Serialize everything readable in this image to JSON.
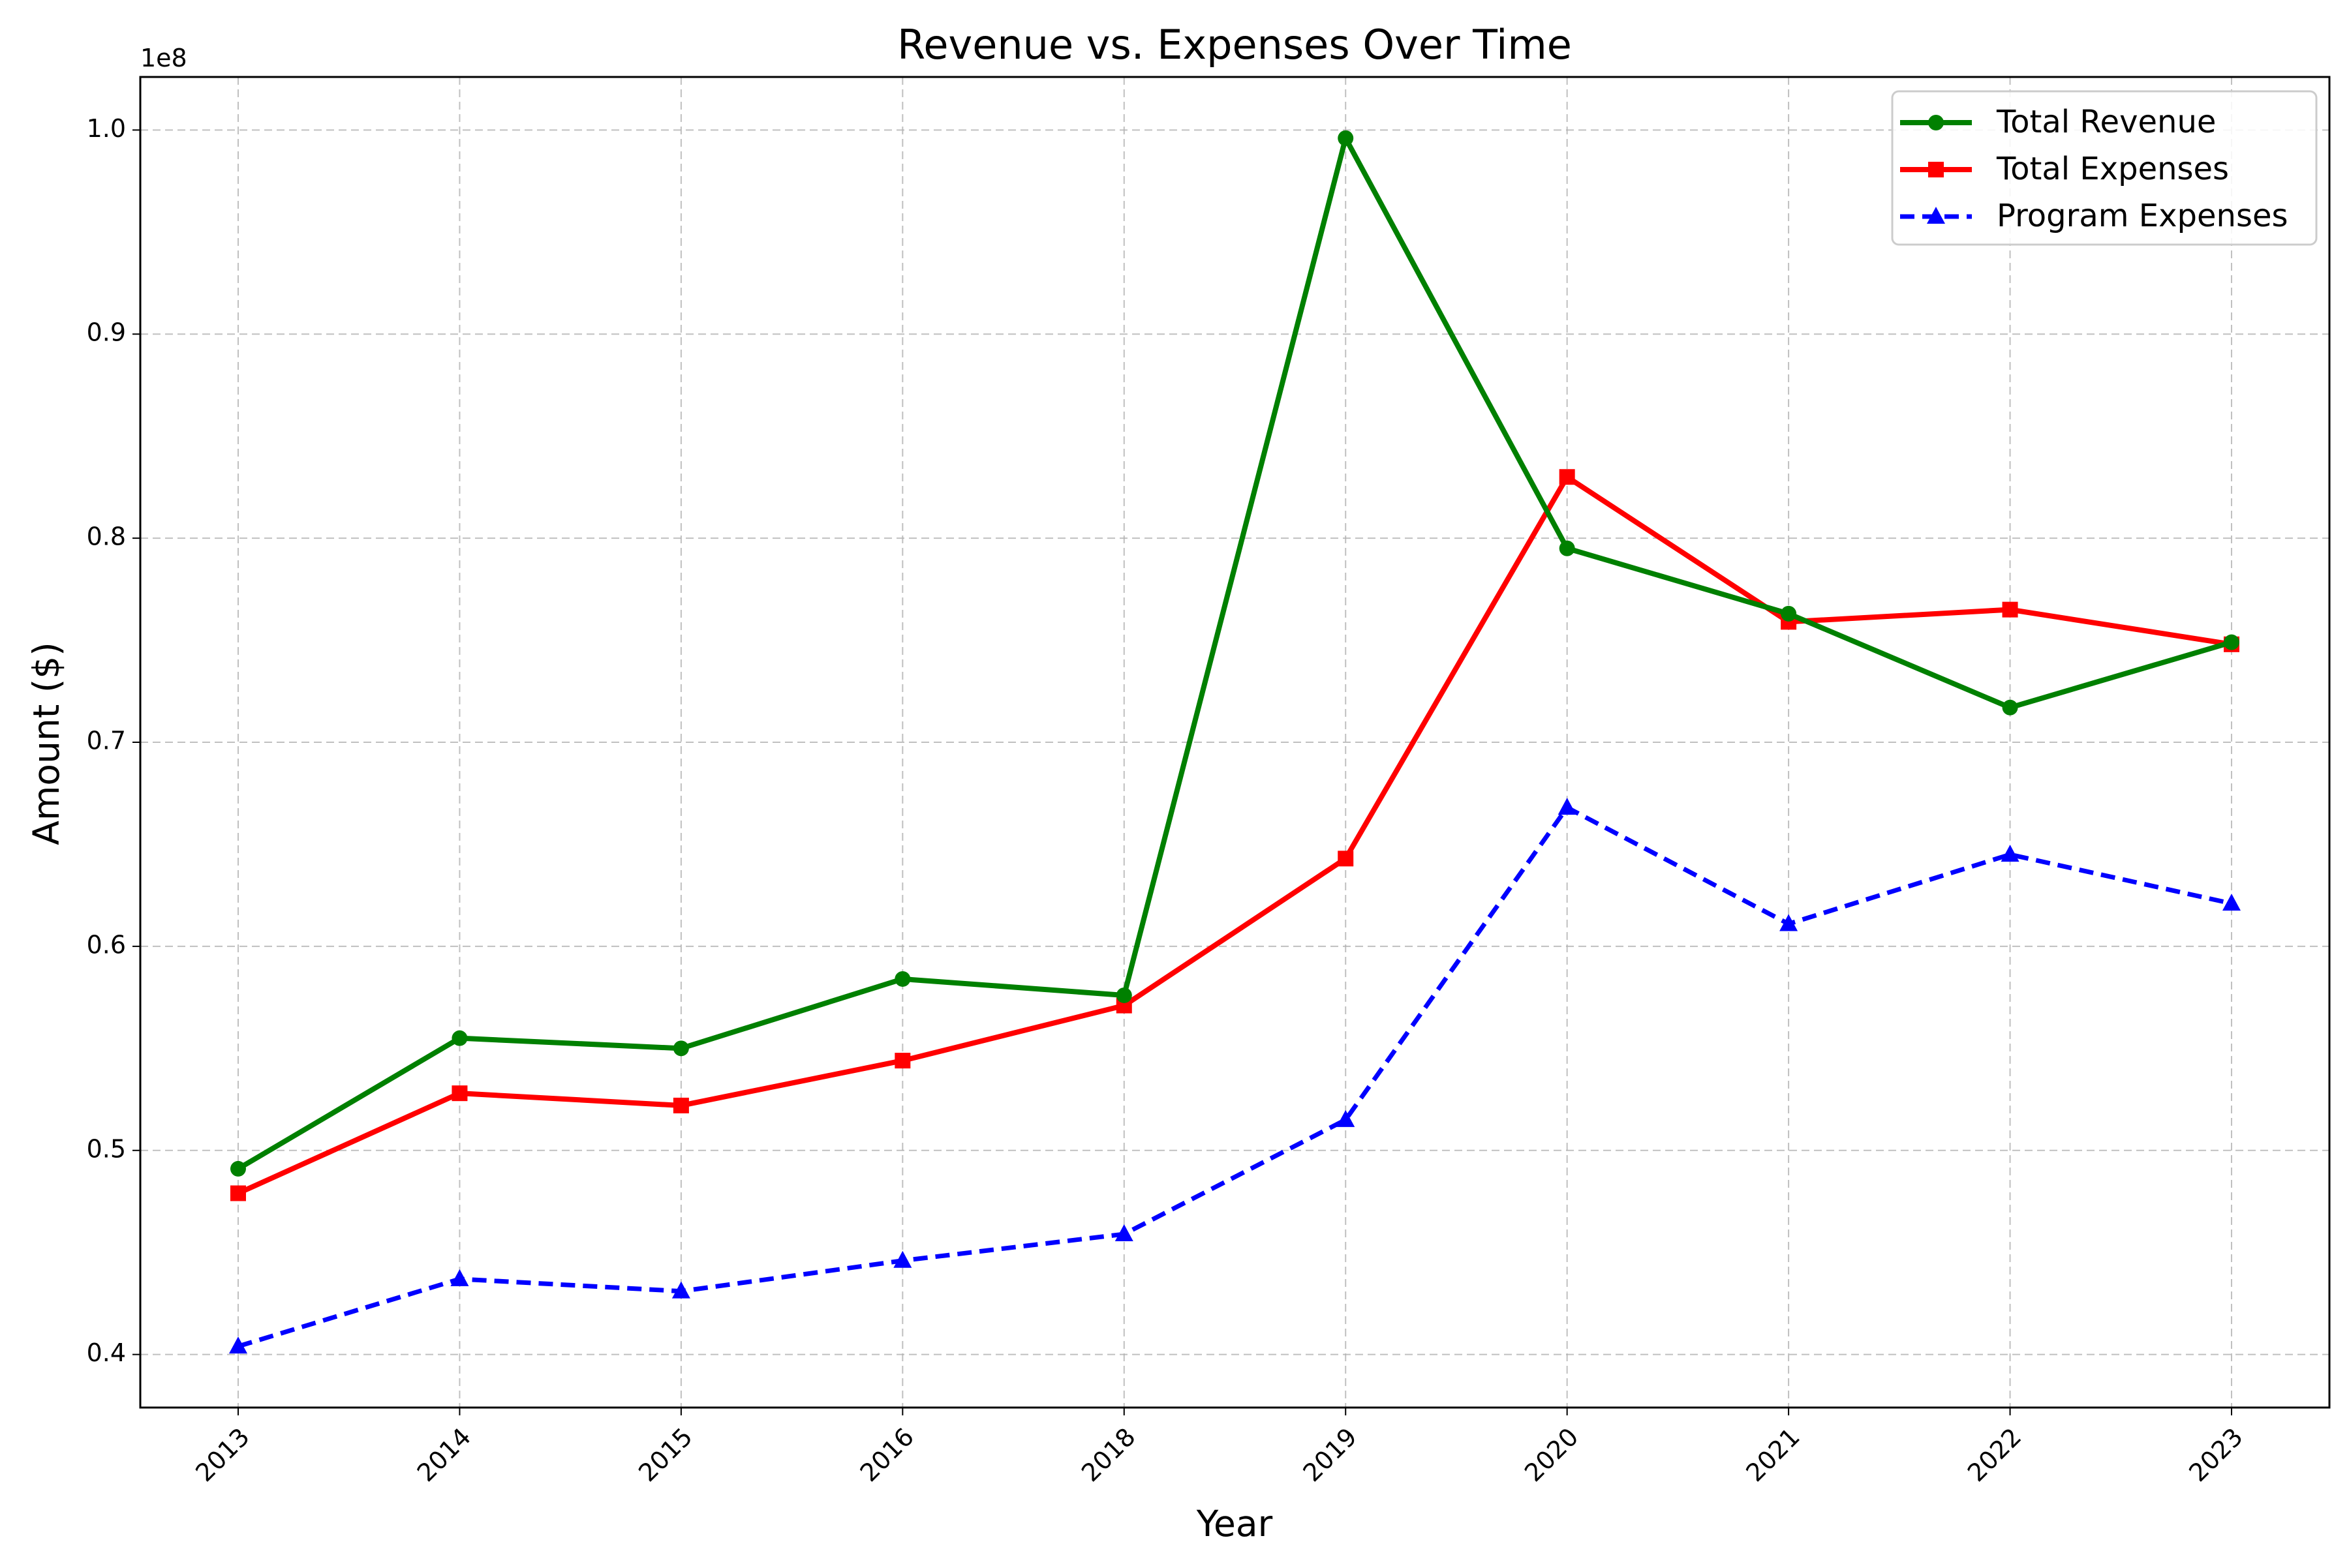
{
  "chart_data": {
    "type": "line",
    "title": "Revenue vs. Expenses Over Time",
    "xlabel": "Year",
    "ylabel": "Amount ($)",
    "y_offset_label": "1e8",
    "categories": [
      "2013",
      "2014",
      "2015",
      "2016",
      "2018",
      "2019",
      "2020",
      "2021",
      "2022",
      "2023"
    ],
    "y_ticks": [
      "0.4",
      "0.5",
      "0.6",
      "0.7",
      "0.8",
      "0.9",
      "1.0"
    ],
    "y_tick_values": [
      40000000,
      50000000,
      60000000,
      70000000,
      80000000,
      90000000,
      100000000
    ],
    "ylim": [
      37400000,
      102600000
    ],
    "grid": true,
    "legend_position": "top-right",
    "series": [
      {
        "name": "Total Revenue",
        "color": "#008000",
        "marker": "circle",
        "line_style": "solid",
        "values": [
          49100000,
          55500000,
          55000000,
          58400000,
          57600000,
          99600000,
          79500000,
          76300000,
          71700000,
          74900000
        ]
      },
      {
        "name": "Total Expenses",
        "color": "#ff0000",
        "marker": "square",
        "line_style": "solid",
        "values": [
          47900000,
          52800000,
          52200000,
          54400000,
          57100000,
          64300000,
          83000000,
          75900000,
          76500000,
          74800000
        ]
      },
      {
        "name": "Program Expenses",
        "color": "#0000ff",
        "marker": "triangle",
        "line_style": "dashed",
        "values": [
          40400000,
          43700000,
          43100000,
          44600000,
          45900000,
          51500000,
          66800000,
          61100000,
          64500000,
          62100000
        ]
      }
    ]
  }
}
